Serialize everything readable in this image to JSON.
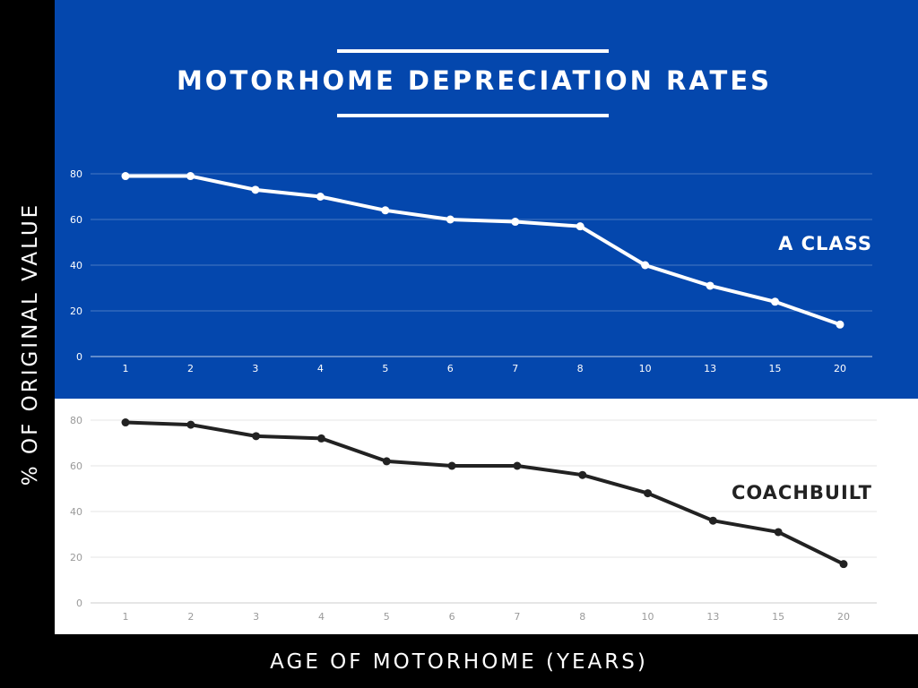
{
  "title": "MOTORHOME DEPRECIATION RATES",
  "y_axis_title": "% OF ORIGINAL VALUE",
  "x_axis_title": "AGE OF MOTORHOME (YEARS)",
  "colors": {
    "top_panel": "#0447AD",
    "bottom_panel": "#FFFFFF",
    "frame": "#000000",
    "a_class_line": "#FFFFFF",
    "coachbuilt_line": "#222222"
  },
  "chart_data": [
    {
      "type": "line",
      "series_label": "A CLASS",
      "categories": [
        "1",
        "2",
        "3",
        "4",
        "5",
        "6",
        "7",
        "8",
        "10",
        "13",
        "15",
        "20"
      ],
      "series": [
        {
          "name": "A CLASS",
          "values": [
            79,
            79,
            73,
            70,
            64,
            60,
            59,
            57,
            40,
            31,
            24,
            14
          ]
        }
      ],
      "yticks": [
        "0",
        "20",
        "40",
        "60",
        "80"
      ],
      "ylim": [
        0,
        80
      ],
      "grid": true
    },
    {
      "type": "line",
      "series_label": "COACHBUILT",
      "categories": [
        "1",
        "2",
        "3",
        "4",
        "5",
        "6",
        "7",
        "8",
        "10",
        "13",
        "15",
        "20"
      ],
      "series": [
        {
          "name": "COACHBUILT",
          "values": [
            79,
            78,
            73,
            72,
            62,
            60,
            60,
            56,
            48,
            36,
            31,
            17
          ]
        }
      ],
      "yticks": [
        "0",
        "20",
        "40",
        "60",
        "80"
      ],
      "ylim": [
        0,
        80
      ],
      "grid": true
    }
  ]
}
